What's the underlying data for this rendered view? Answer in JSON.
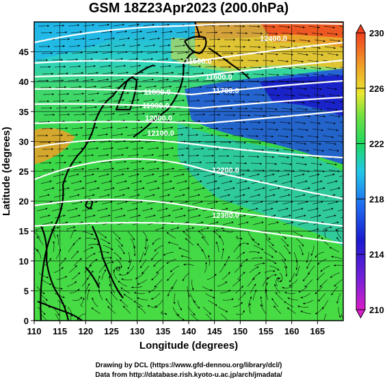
{
  "title": "GSM 18Z23Apr2023 (200.0hPa)",
  "x_axis": {
    "label": "Longitude (degrees)",
    "range": [
      110,
      170
    ],
    "ticks": [
      "110",
      "115",
      "120",
      "125",
      "130",
      "135",
      "140",
      "145",
      "150",
      "155",
      "160",
      "165"
    ]
  },
  "y_axis": {
    "label": "Latitude (degrees)",
    "range": [
      0,
      50
    ],
    "ticks": [
      "0",
      "5",
      "10",
      "15",
      "20",
      "25",
      "30",
      "35",
      "40",
      "45"
    ]
  },
  "colorbar": {
    "range": [
      210,
      230
    ],
    "ticks": [
      "210",
      "214",
      "218",
      "222",
      "226",
      "230"
    ],
    "colors": [
      "#d81ec8",
      "#1a1ad0",
      "#1e6ef0",
      "#22c8e8",
      "#20d860",
      "#70e040",
      "#e8e830",
      "#f0a028",
      "#f04020"
    ]
  },
  "contours": [
    {
      "label": "11500.0"
    },
    {
      "label": "11600.0"
    },
    {
      "label": "11700.0"
    },
    {
      "label": "11800.0"
    },
    {
      "label": "11900.0"
    },
    {
      "label": "12000.0"
    },
    {
      "label": "12100.0"
    },
    {
      "label": "12200.0"
    },
    {
      "label": "12300.0"
    },
    {
      "label": "12400.0"
    }
  ],
  "credits": {
    "line1": "Drawing by DCL (https://www.gfd-dennou.org/library/dcl/)",
    "line2": "Data from http://database.rish.kyoto-u.ac.jp/arch/jmadata/"
  }
}
